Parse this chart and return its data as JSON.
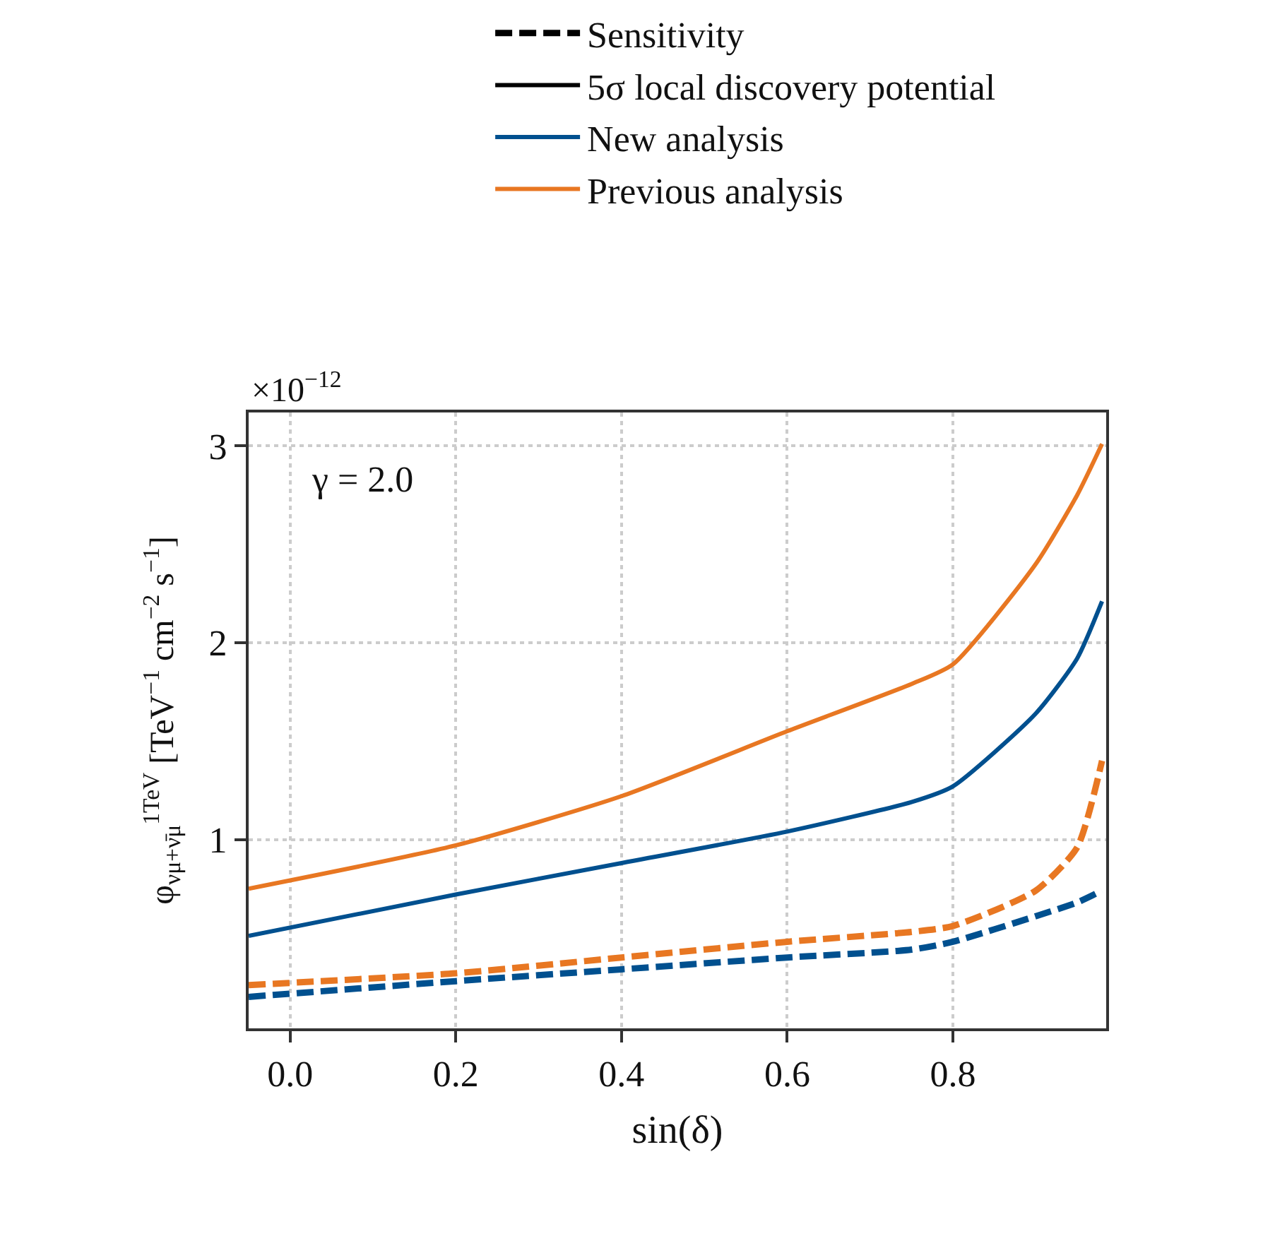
{
  "chart_data": {
    "type": "line",
    "xlabel": "sin(δ)",
    "ylabel": "φ$_{νμ+ν̄μ}$$^{1TeV}$ [TeV$^{−1}$ cm$^{−2}$ s$^{−1}$]",
    "annotations": [
      "×10$^{−12}$",
      "γ = 2.0"
    ],
    "x": [
      -0.05,
      0.2,
      0.4,
      0.6,
      0.75,
      0.8,
      0.9,
      0.95,
      0.98
    ],
    "series": [
      {
        "name": "Sensitivity",
        "color": "#000000",
        "line_style": "dashed",
        "values": [
          null,
          null,
          null,
          null,
          null,
          null,
          null,
          null,
          null
        ]
      },
      {
        "name": "5σ local discovery potential",
        "color": "#000000",
        "line_style": "solid",
        "values": [
          null,
          null,
          null,
          null,
          null,
          null,
          null,
          null,
          null
        ]
      },
      {
        "name": "New analysis",
        "color": "#00508f",
        "line_style": "solid",
        "values": [
          0.51,
          0.72,
          0.88,
          1.04,
          1.19,
          1.27,
          1.64,
          1.92,
          2.21
        ]
      },
      {
        "name": "Previous analysis",
        "color": "#e87722",
        "line_style": "solid",
        "values": [
          0.75,
          0.97,
          1.22,
          1.55,
          1.79,
          1.89,
          2.4,
          2.75,
          3.01
        ]
      },
      {
        "color": "#00508f",
        "line_style": "dashed",
        "values": [
          0.2,
          0.28,
          0.34,
          0.4,
          0.44,
          0.48,
          0.61,
          0.68,
          0.74
        ]
      },
      {
        "color": "#e87722",
        "line_style": "dashed",
        "values": [
          0.26,
          0.32,
          0.4,
          0.48,
          0.53,
          0.56,
          0.74,
          0.96,
          1.4
        ]
      }
    ],
    "xlim": [
      -0.05,
      0.985
    ],
    "ylim": [
      0.04,
      3.17
    ],
    "xticks": [
      {
        "value": 0,
        "label": "0.0"
      },
      0.2,
      0.4,
      0.6,
      0.8
    ],
    "yticks": [
      1,
      2,
      3
    ],
    "grid": true,
    "legend": "top",
    "marker": "none"
  }
}
